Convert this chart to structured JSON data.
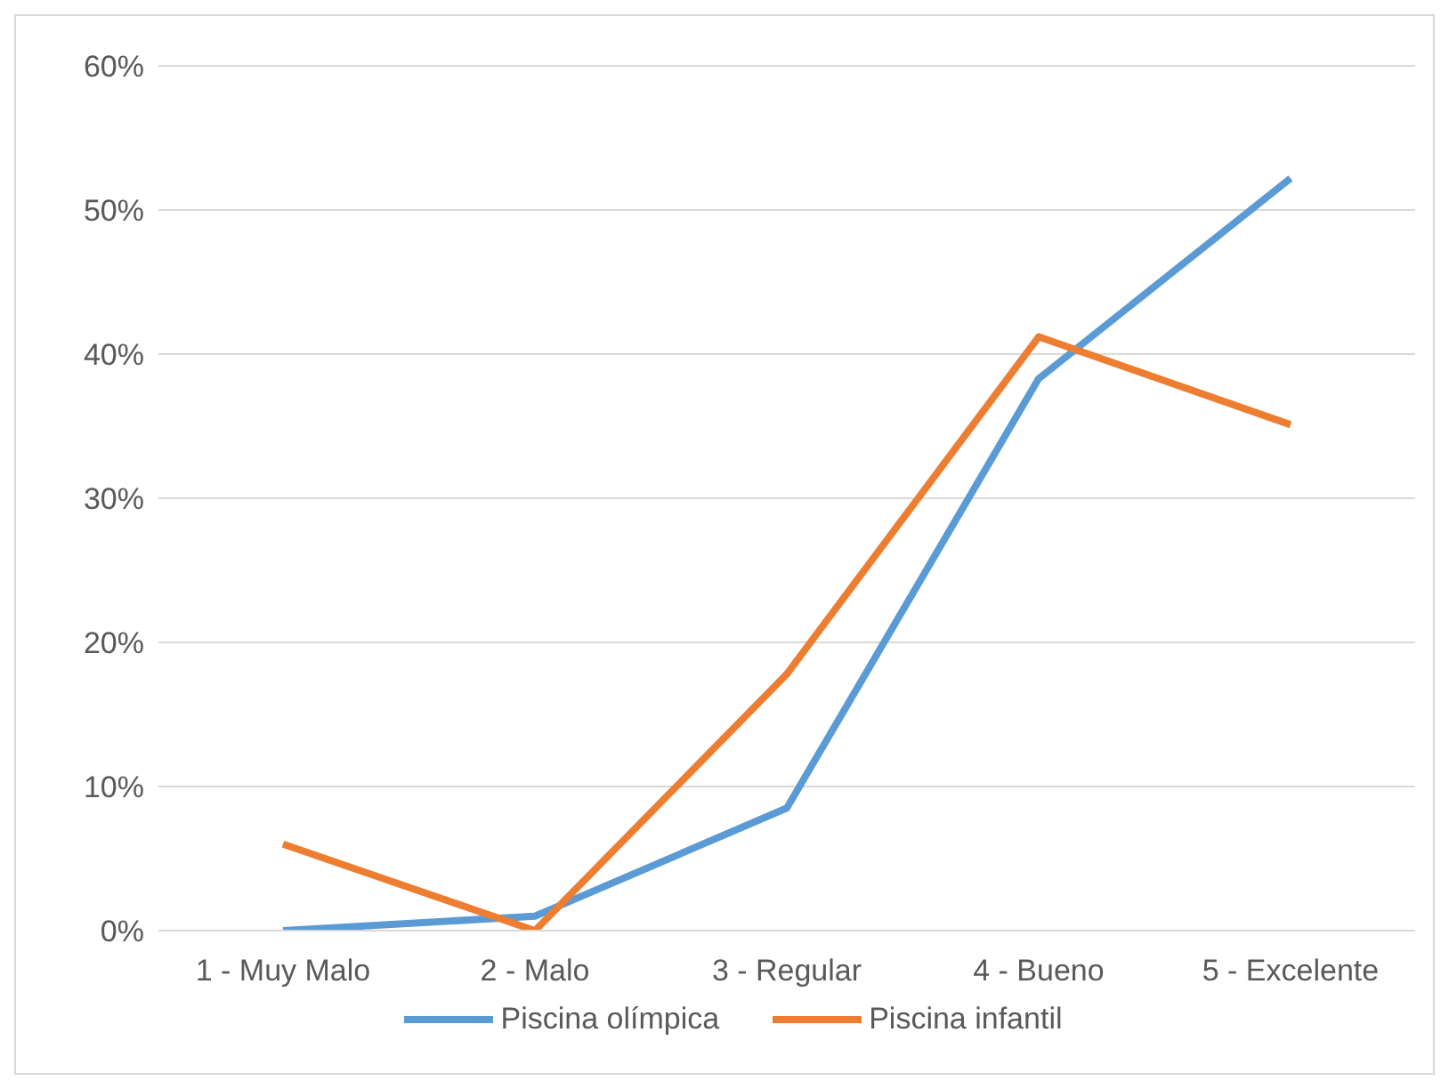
{
  "chart_data": {
    "type": "line",
    "categories": [
      "1 - Muy Malo",
      "2 - Malo",
      "3 - Regular",
      "4 - Bueno",
      "5 - Excelente"
    ],
    "series": [
      {
        "name": "Piscina olímpica",
        "color": "#5b9bd5",
        "values": [
          0,
          1,
          8.5,
          38.3,
          52.2
        ]
      },
      {
        "name": "Piscina infantil",
        "color": "#ed7d31",
        "values": [
          6,
          0,
          17.8,
          41.2,
          35.1
        ]
      }
    ],
    "ylim": [
      0,
      60
    ],
    "yticks": [
      {
        "value": 0,
        "label": "0%"
      },
      {
        "value": 10,
        "label": "10%"
      },
      {
        "value": 20,
        "label": "20%"
      },
      {
        "value": 30,
        "label": "30%"
      },
      {
        "value": 40,
        "label": "40%"
      },
      {
        "value": 50,
        "label": "50%"
      },
      {
        "value": 60,
        "label": "60%"
      }
    ],
    "grid": "y",
    "legend": "bottom",
    "marker": "none",
    "line_style": "solid"
  }
}
